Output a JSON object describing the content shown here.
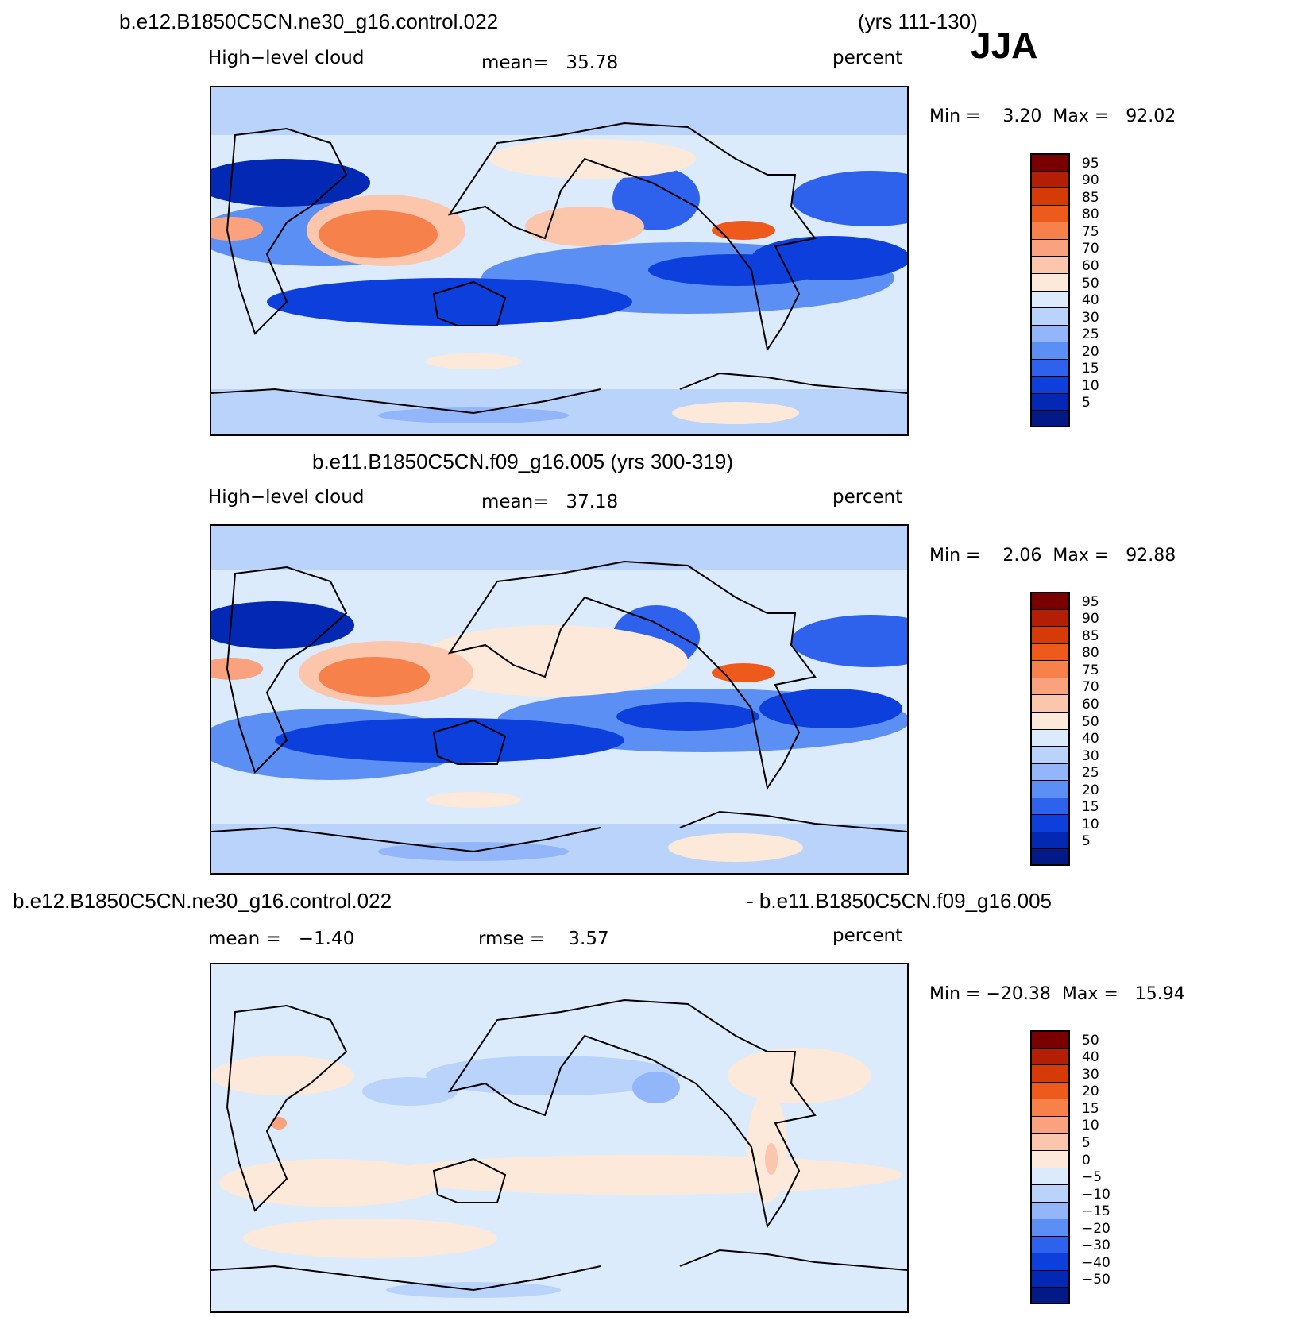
{
  "season": "JJA",
  "header": {
    "case1": "b.e12.B1850C5CN.ne30_g16.control.022",
    "years1": "(yrs 111-130)"
  },
  "panels": [
    {
      "variable": "High−level cloud",
      "mean_text": "mean=   35.78",
      "units": "percent",
      "minmax": "Min =    3.20  Max =   92.02"
    },
    {
      "title": "b.e11.B1850C5CN.f09_g16.005 (yrs 300-319)",
      "variable": "High−level cloud",
      "mean_text": "mean=   37.18",
      "units": "percent",
      "minmax": "Min =    2.06  Max =   92.88"
    },
    {
      "title_left": "b.e12.B1850C5CN.ne30_g16.control.022",
      "title_right": "- b.e11.B1850C5CN.f09_g16.005",
      "mean_text": "mean =   −1.40",
      "rmse_text": "rmse =    3.57",
      "units": "percent",
      "minmax": "Min = −20.38  Max =   15.94"
    }
  ],
  "colorbars": {
    "abs_labels": [
      "95",
      "90",
      "85",
      "80",
      "75",
      "70",
      "60",
      "50",
      "40",
      "30",
      "25",
      "20",
      "15",
      "10",
      "5"
    ],
    "abs_colors": [
      "#7a0000",
      "#b31e04",
      "#d63a07",
      "#ee5a1c",
      "#f7814b",
      "#f9a27d",
      "#fcc6ac",
      "#fde9d9",
      "#dcebfc",
      "#b9d3fb",
      "#93b6fa",
      "#5c8ff3",
      "#2e62ec",
      "#0d3fdc",
      "#0329b4",
      "#031a86"
    ],
    "diff_labels": [
      "50",
      "40",
      "30",
      "20",
      "15",
      "10",
      "5",
      "0",
      "−5",
      "−10",
      "−15",
      "−20",
      "−30",
      "−40",
      "−50"
    ],
    "diff_colors": [
      "#7a0000",
      "#b31e04",
      "#d63a07",
      "#ee5a1c",
      "#f7814b",
      "#f9a27d",
      "#fcc6ac",
      "#fde9d9",
      "#dcebfc",
      "#b9d3fb",
      "#93b6fa",
      "#5c8ff3",
      "#2e62ec",
      "#0d3fdc",
      "#0329b4",
      "#031a86"
    ]
  },
  "chart_data": [
    {
      "type": "heatmap",
      "title": "b.e12.B1850C5CN.ne30_g16.control.022 (yrs 111-130) JJA",
      "variable": "High-level cloud",
      "units": "percent",
      "mean": 35.78,
      "min": 3.2,
      "max": 92.02,
      "levels": [
        5,
        10,
        15,
        20,
        25,
        30,
        40,
        50,
        60,
        70,
        75,
        80,
        85,
        90,
        95
      ]
    },
    {
      "type": "heatmap",
      "title": "b.e11.B1850C5CN.f09_g16.005 (yrs 300-319)",
      "variable": "High-level cloud",
      "units": "percent",
      "mean": 37.18,
      "min": 2.06,
      "max": 92.88,
      "levels": [
        5,
        10,
        15,
        20,
        25,
        30,
        40,
        50,
        60,
        70,
        75,
        80,
        85,
        90,
        95
      ]
    },
    {
      "type": "heatmap",
      "title": "b.e12.B1850C5CN.ne30_g16.control.022 - b.e11.B1850C5CN.f09_g16.005",
      "units": "percent",
      "mean": -1.4,
      "rmse": 3.57,
      "min": -20.38,
      "max": 15.94,
      "levels": [
        -50,
        -40,
        -30,
        -20,
        -15,
        -10,
        -5,
        0,
        5,
        10,
        15,
        20,
        30,
        40,
        50
      ]
    }
  ]
}
